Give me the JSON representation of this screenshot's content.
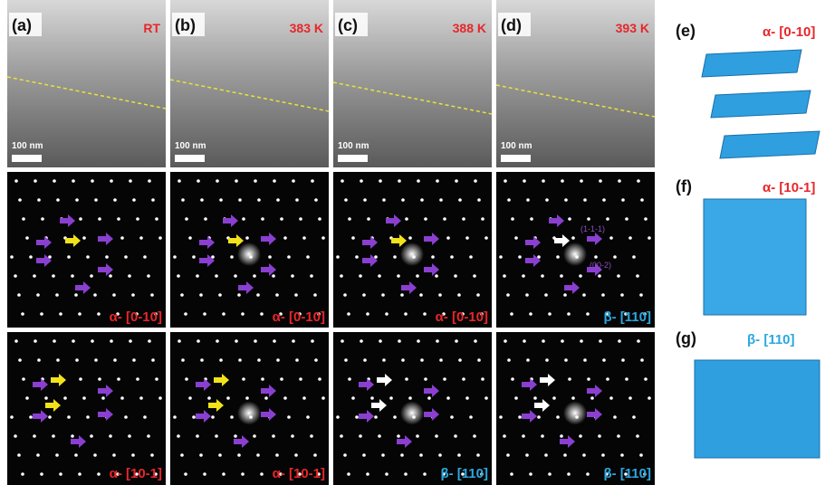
{
  "columns": [
    {
      "label": "(a)",
      "temperature": "RT",
      "scale_bar": "100 nm",
      "middle_zone": "α- [0-10]",
      "bottom_zone": "α- [10-1]"
    },
    {
      "label": "(b)",
      "temperature": "383 K",
      "scale_bar": "100 nm",
      "middle_zone": "α- [0-10]",
      "bottom_zone": "α- [10-1]"
    },
    {
      "label": "(c)",
      "temperature": "388 K",
      "scale_bar": "100 nm",
      "middle_zone": "α- [0-10]",
      "bottom_zone": "β- [110]"
    },
    {
      "label": "(d)",
      "temperature": "393 K",
      "scale_bar": "100 nm",
      "middle_zone": "β- [110]",
      "bottom_zone": "β- [110]"
    }
  ],
  "middle_annotations": [
    "(1-1-1)",
    "(00-2)"
  ],
  "structures": [
    {
      "label": "(e)",
      "zone": "α- [0-10]"
    },
    {
      "label": "(f)",
      "zone": "α- [10-1]"
    },
    {
      "label": "(g)",
      "zone": "β- [110]"
    }
  ]
}
